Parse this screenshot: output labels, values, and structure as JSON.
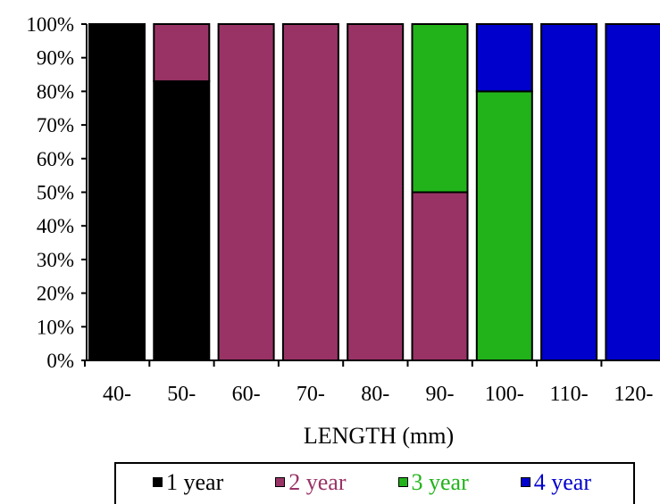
{
  "chart_data": {
    "type": "bar",
    "stacked": true,
    "normalized": true,
    "categories": [
      "40-",
      "50-",
      "60-",
      "70-",
      "80-",
      "90-",
      "100-",
      "110-",
      "120-"
    ],
    "series": [
      {
        "name": "1 year",
        "color": "#000000",
        "values": [
          100,
          83,
          0,
          0,
          0,
          0,
          0,
          0,
          0
        ]
      },
      {
        "name": "2 year",
        "color": "#993366",
        "values": [
          0,
          17,
          100,
          100,
          100,
          50,
          0,
          0,
          0
        ]
      },
      {
        "name": "3 year",
        "color": "#22b31a",
        "values": [
          0,
          0,
          0,
          0,
          0,
          50,
          80,
          0,
          0
        ]
      },
      {
        "name": "4 year",
        "color": "#0000cc",
        "values": [
          0,
          0,
          0,
          0,
          0,
          0,
          20,
          100,
          100
        ]
      }
    ],
    "ylim": [
      0,
      100
    ],
    "yticks": [
      "0%",
      "10%",
      "20%",
      "30%",
      "40%",
      "50%",
      "60%",
      "70%",
      "80%",
      "90%",
      "100%"
    ],
    "xlabel": "LENGTH (mm)",
    "ylabel": "",
    "title": "",
    "grid": false,
    "legend_position": "bottom"
  }
}
